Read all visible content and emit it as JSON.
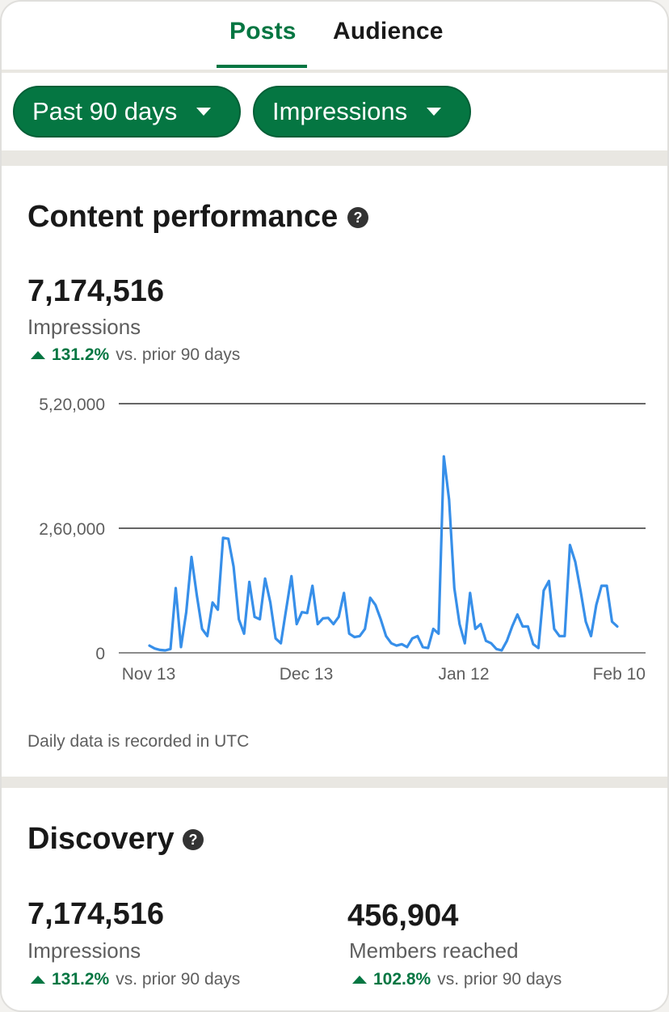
{
  "tabs": {
    "posts": "Posts",
    "audience": "Audience",
    "active": "posts"
  },
  "filters": {
    "range": "Past 90 days",
    "metric": "Impressions"
  },
  "colors": {
    "accent": "#057642",
    "line": "#378fe9"
  },
  "content_performance": {
    "title": "Content performance",
    "value": "7,174,516",
    "label": "Impressions",
    "delta_pct": "131.2%",
    "delta_text": "vs. prior 90 days",
    "footnote": "Daily data is recorded in UTC"
  },
  "discovery": {
    "title": "Discovery",
    "impressions": {
      "value": "7,174,516",
      "label": "Impressions",
      "delta_pct": "131.2%",
      "delta_text": "vs. prior 90 days"
    },
    "members": {
      "value": "456,904",
      "label": "Members reached",
      "delta_pct": "102.8%",
      "delta_text": "vs. prior 90 days"
    }
  },
  "chart_data": {
    "type": "line",
    "y_ticks": [
      "5,20,000",
      "2,60,000",
      "0"
    ],
    "y_tick_values": [
      520000,
      260000,
      0
    ],
    "ylim": [
      0,
      520000
    ],
    "x_ticks": [
      "Nov 13",
      "Dec 13",
      "Jan 12",
      "Feb 10"
    ],
    "x_tick_days": [
      0,
      30,
      60,
      89
    ],
    "grid": true,
    "series": [
      {
        "values": [
          15000,
          9000,
          6000,
          5000,
          8000,
          135000,
          12000,
          85000,
          200000,
          120000,
          50000,
          35000,
          105000,
          90000,
          240000,
          238000,
          180000,
          70000,
          40000,
          148000,
          75000,
          70000,
          155000,
          105000,
          30000,
          20000,
          90000,
          160000,
          60000,
          85000,
          83000,
          140000,
          60000,
          72000,
          73000,
          60000,
          75000,
          125000,
          40000,
          33000,
          35000,
          50000,
          115000,
          100000,
          70000,
          35000,
          20000,
          15000,
          18000,
          12000,
          30000,
          35000,
          12000,
          10000,
          50000,
          40000,
          410000,
          320000,
          135000,
          60000,
          20000,
          125000,
          50000,
          60000,
          25000,
          20000,
          8000,
          5000,
          25000,
          55000,
          80000,
          55000,
          55000,
          18000,
          10000,
          130000,
          150000,
          50000,
          35000,
          35000,
          225000,
          190000,
          130000,
          65000,
          35000,
          100000,
          140000,
          140000,
          65000,
          55000
        ]
      }
    ]
  }
}
